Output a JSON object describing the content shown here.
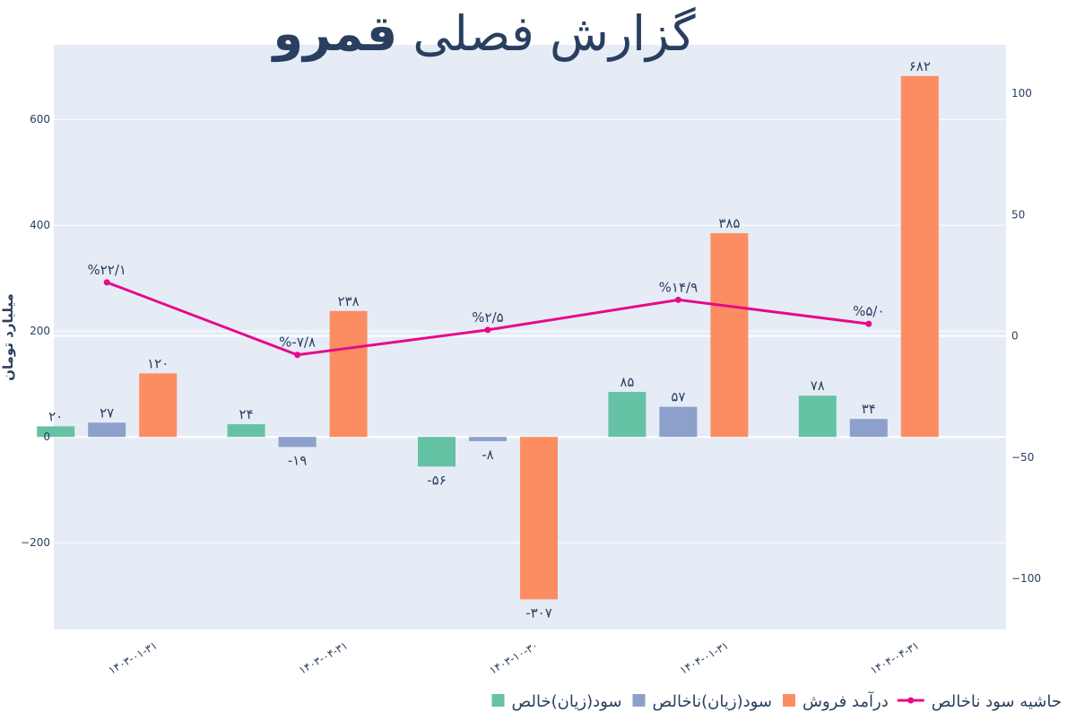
{
  "chart_data": {
    "type": "bar",
    "title_main": "گزارش فصلی",
    "title_bold": "قمرو",
    "ylabel": "میلیارد تومان",
    "ylim": [
      -364,
      741
    ],
    "y2lim": [
      -121,
      120
    ],
    "yticks": [
      -200,
      0,
      200,
      400,
      600
    ],
    "ytick_labels": [
      "−200",
      "0",
      "200",
      "400",
      "600"
    ],
    "y2ticks": [
      -100,
      -50,
      0,
      50,
      100
    ],
    "y2tick_labels": [
      "−100",
      "−50",
      "0",
      "50",
      "100"
    ],
    "categories": [
      "۱۴۰۳-۰۱-۳۱",
      "۱۴۰۳-۰۴-۳۱",
      "۱۴۰۳-۱۰-۳۰",
      "۱۴۰۴-۰۱-۳۱",
      "۱۴۰۴-۰۴-۳۱"
    ],
    "grid": true,
    "legend_placement": "bottom-right",
    "series": [
      {
        "name": "سود(زیان)خالص",
        "kind": "bar",
        "color": "#66c2a5",
        "values": [
          20,
          24,
          -56,
          85,
          78
        ],
        "labels": [
          "۲۰",
          "۲۴",
          "-۵۶",
          "۸۵",
          "۷۸"
        ]
      },
      {
        "name": "سود(زیان)ناخالص",
        "kind": "bar",
        "color": "#8da0cb",
        "values": [
          27,
          -19,
          -8,
          57,
          34
        ],
        "labels": [
          "۲۷",
          "-۱۹",
          "-۸",
          "۵۷",
          "۳۴"
        ]
      },
      {
        "name": "درآمد فروش",
        "kind": "bar",
        "color": "#fc8d62",
        "values": [
          120,
          238,
          -307,
          385,
          682
        ],
        "labels": [
          "۱۲۰",
          "۲۳۸",
          "-۳۰۷",
          "۳۸۵",
          "۶۸۲"
        ]
      },
      {
        "name": "حاشیه سود ناخالص",
        "kind": "line",
        "axis": "y2",
        "color": "#e8098a",
        "values": [
          22.1,
          -7.8,
          2.5,
          14.9,
          5.0
        ],
        "labels": [
          "%۲۲/۱",
          "%-۷/۸",
          "%۲/۵",
          "%۱۴/۹",
          "%۵/۰"
        ]
      }
    ]
  }
}
